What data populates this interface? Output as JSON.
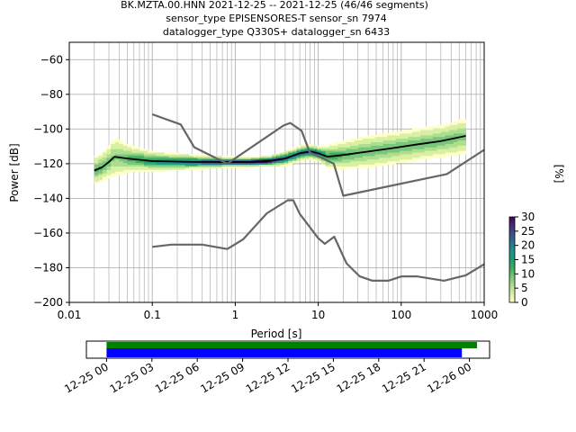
{
  "header": {
    "title_line1": "BK.MZTA.00.HNN   2021-12-25 -- 2021-12-25  (46/46 segments)",
    "title_line2": "sensor_type EPISENSORES-T sensor_sn 7974",
    "title_line3": "datalogger_type Q330S+ datalogger_sn 6433"
  },
  "chart_data": [
    {
      "type": "heatmap",
      "xlabel": "Period [s]",
      "ylabel": "Power [dB]",
      "xscale": "log",
      "xlim": [
        0.01,
        1000
      ],
      "ylim": [
        -200,
        -50
      ],
      "grid": true,
      "x_ticks": [
        {
          "value": 0.01,
          "label": "0.01"
        },
        {
          "value": 0.1,
          "label": "0.1"
        },
        {
          "value": 1,
          "label": "1"
        },
        {
          "value": 10,
          "label": "10"
        },
        {
          "value": 100,
          "label": "100"
        },
        {
          "value": 1000,
          "label": "1000"
        }
      ],
      "y_ticks": [
        {
          "value": -60,
          "label": "−60"
        },
        {
          "value": -80,
          "label": "−80"
        },
        {
          "value": -100,
          "label": "−100"
        },
        {
          "value": -120,
          "label": "−120"
        },
        {
          "value": -140,
          "label": "−140"
        },
        {
          "value": -160,
          "label": "−160"
        },
        {
          "value": -180,
          "label": "−180"
        },
        {
          "value": -200,
          "label": "−200"
        }
      ],
      "series": [
        {
          "role": "mode",
          "color": "#000000",
          "x": [
            0.02,
            0.025,
            0.03,
            0.035,
            0.05,
            0.1,
            0.3,
            0.8,
            1.5,
            2.5,
            4,
            6,
            8,
            10,
            13,
            20,
            40,
            80,
            150,
            300,
            600
          ],
          "y": [
            -124,
            -122,
            -119,
            -116,
            -117,
            -118.5,
            -119,
            -119,
            -119,
            -118.5,
            -117,
            -114,
            -113,
            -114,
            -116,
            -115,
            -113,
            -111,
            -109,
            -107,
            -104
          ]
        },
        {
          "role": "noise_model_high",
          "color": "#666666",
          "x": [
            0.1,
            0.22,
            0.32,
            0.8,
            3.8,
            4.6,
            6.3,
            7.9,
            15.4,
            20,
            354.8,
            1000
          ],
          "y": [
            -91.5,
            -97.4,
            -110.5,
            -120,
            -98,
            -96.5,
            -101,
            -113.5,
            -120,
            -138.5,
            -126,
            -112
          ]
        },
        {
          "role": "noise_model_low",
          "color": "#666666",
          "x": [
            0.1,
            0.17,
            0.4,
            0.8,
            1.24,
            2.4,
            4.3,
            5,
            6,
            10,
            12,
            15.6,
            21.9,
            31.6,
            45,
            70,
            101,
            154,
            328,
            600,
            1000
          ],
          "y": [
            -168,
            -166.7,
            -166.7,
            -169.2,
            -163.7,
            -148.6,
            -141.1,
            -141.1,
            -149,
            -163,
            -166.2,
            -162.1,
            -177.5,
            -185,
            -187.5,
            -187.5,
            -185,
            -185,
            -187.5,
            -184.4,
            -178
          ]
        }
      ],
      "density": {
        "description": "probabilistic PSD histogram, percentage per cell",
        "x": [
          0.02,
          0.025,
          0.03,
          0.035,
          0.05,
          0.1,
          0.3,
          0.8,
          1.5,
          2.5,
          4,
          6,
          8,
          10,
          13,
          20,
          40,
          80,
          150,
          300,
          600
        ],
        "spread_db": [
          6,
          6,
          7,
          9,
          6,
          4,
          3,
          2,
          2,
          2,
          3,
          3,
          3,
          3,
          5,
          6,
          7,
          7,
          7,
          7,
          8
        ]
      }
    },
    {
      "type": "heatmap",
      "role": "colorbar",
      "label": "[%]",
      "range": [
        0,
        30
      ],
      "ticks": [
        {
          "value": 0,
          "label": "0"
        },
        {
          "value": 5,
          "label": "5"
        },
        {
          "value": 10,
          "label": "10"
        },
        {
          "value": 15,
          "label": "15"
        },
        {
          "value": 20,
          "label": "20"
        },
        {
          "value": 25,
          "label": "25"
        },
        {
          "value": 30,
          "label": "30"
        }
      ],
      "colors": [
        "#ffffcc",
        "#d9f0a3",
        "#addd8e",
        "#78c679",
        "#41ab5d",
        "#1d9e74",
        "#21918c",
        "#2c728e",
        "#3b528b",
        "#472d7b",
        "#440154"
      ]
    },
    {
      "type": "bar",
      "role": "data_coverage",
      "xlim": [
        "2021-12-24 22:40",
        "2021-12-26 01:20"
      ],
      "x_ticks": [
        {
          "value": "2021-12-25 00:00",
          "label": "12-25 00"
        },
        {
          "value": "2021-12-25 03:00",
          "label": "12-25 03"
        },
        {
          "value": "2021-12-25 06:00",
          "label": "12-25 06"
        },
        {
          "value": "2021-12-25 09:00",
          "label": "12-25 09"
        },
        {
          "value": "2021-12-25 12:00",
          "label": "12-25 12"
        },
        {
          "value": "2021-12-25 15:00",
          "label": "12-25 15"
        },
        {
          "value": "2021-12-25 18:00",
          "label": "12-25 18"
        },
        {
          "value": "2021-12-25 21:00",
          "label": "12-25 21"
        },
        {
          "value": "2021-12-26 00:00",
          "label": "12-26 00"
        }
      ],
      "bars": [
        {
          "role": "data_available",
          "color": "#008000",
          "start": "2021-12-25 00:00",
          "end": "2021-12-26 00:30"
        },
        {
          "role": "psd_segments",
          "color": "#0000ff",
          "start": "2021-12-25 00:00",
          "end": "2021-12-25 23:30"
        }
      ]
    }
  ]
}
